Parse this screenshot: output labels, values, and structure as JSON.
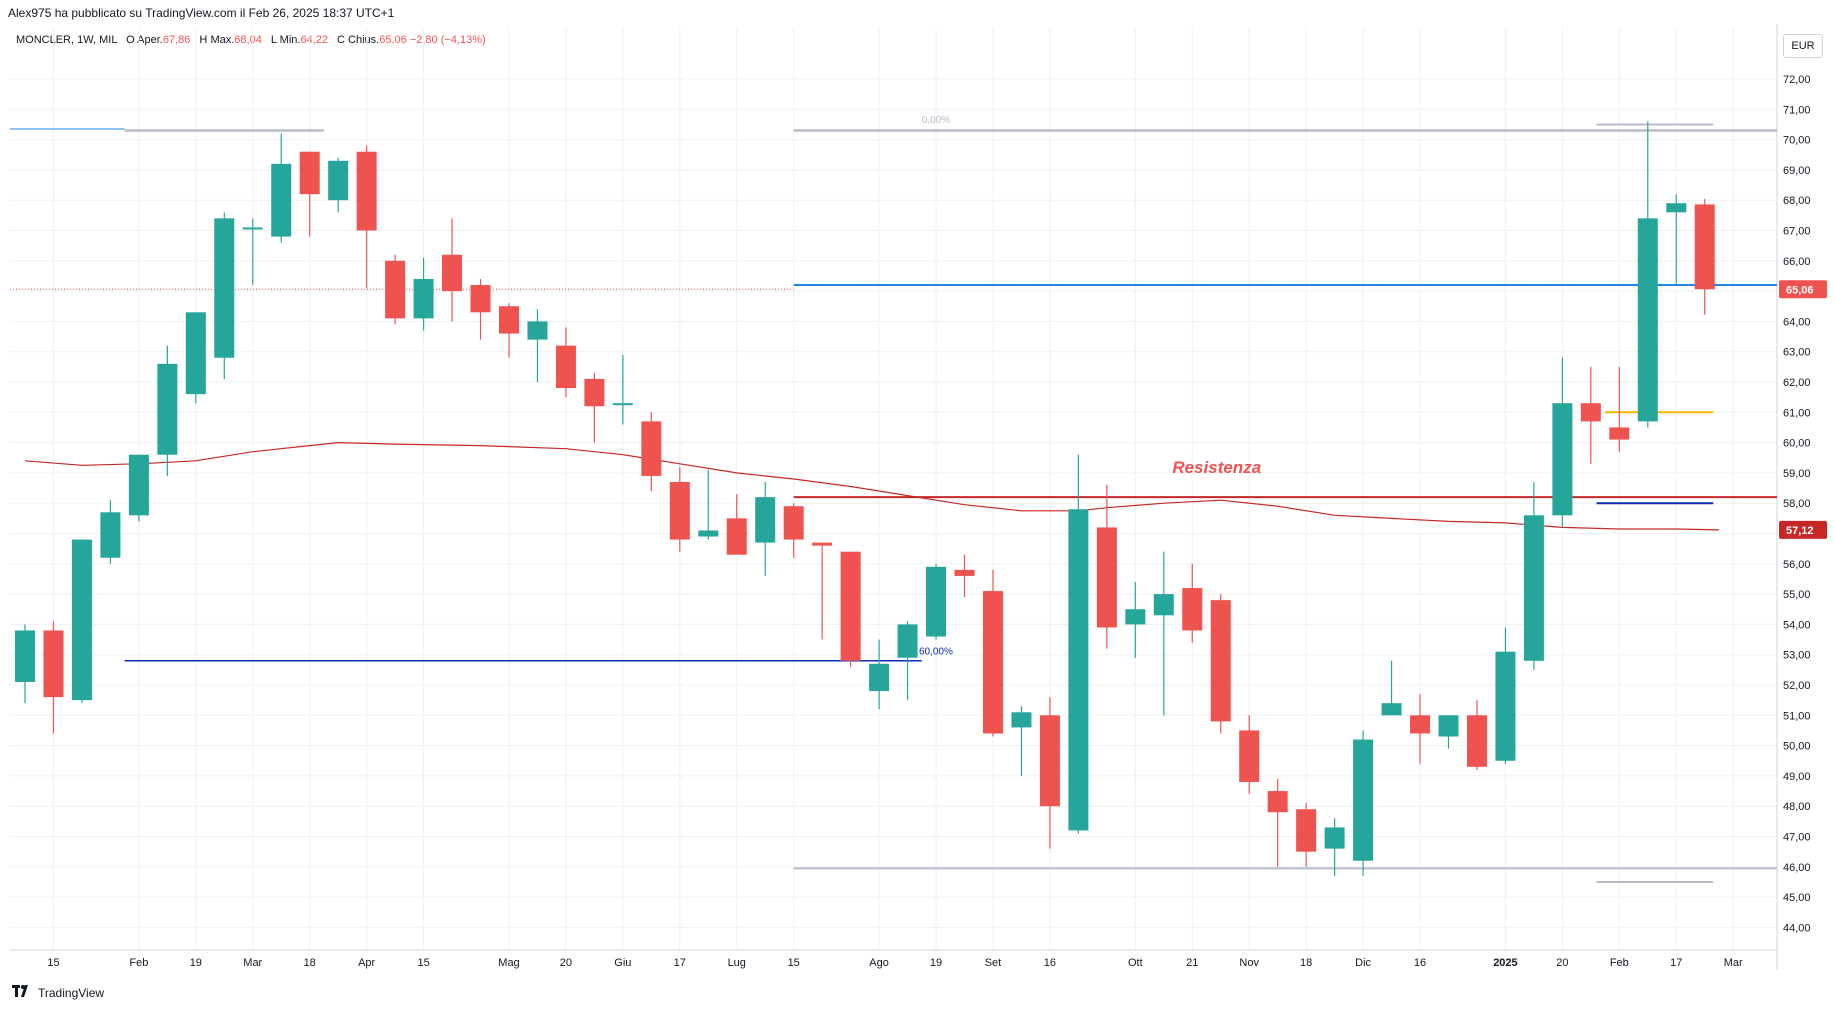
{
  "header": {
    "published_line": "Alex975 ha pubblicato su TradingView.com il Feb 26, 2025 18:37 UTC+1",
    "symbol": "MONCLER, 1W, MIL",
    "o_label": "O",
    "open_label": "Aper.",
    "open_value": "67,86",
    "h_label": "H",
    "high_label": "Max.",
    "high_value": "68,04",
    "l_label": "L",
    "low_label": "Min.",
    "low_value": "64,22",
    "c_label": "C",
    "close_label": "Chius.",
    "close_value": "65,06",
    "change_value": "−2,80 (−4,13%)"
  },
  "currency": "EUR",
  "footer": {
    "brand": "TradingView"
  },
  "colors": {
    "up": "#26a69a",
    "down": "#ef5350",
    "ma": "#c62828",
    "blue_line": "#1e88e5",
    "navy_line": "#0d2bb5",
    "red_line": "#c62828",
    "gray_line": "#b8bcc8",
    "orange_line": "#f5b800",
    "grid": "#eef0f3",
    "price_label_last": "#ef5350",
    "price_label_ma": "#c62828",
    "annotation": "#ef5350"
  },
  "chart_data": {
    "type": "candlestick",
    "title": "",
    "xlabel": "",
    "ylabel": "",
    "ylim": [
      43.5,
      72.5
    ],
    "y_ticks": [
      "44,00",
      "45,00",
      "46,00",
      "47,00",
      "48,00",
      "49,00",
      "50,00",
      "51,00",
      "52,00",
      "53,00",
      "54,00",
      "55,00",
      "56,00",
      "57,00",
      "58,00",
      "59,00",
      "60,00",
      "61,00",
      "62,00",
      "63,00",
      "64,00",
      "65,00",
      "66,00",
      "67,00",
      "68,00",
      "69,00",
      "70,00",
      "71,00",
      "72,00"
    ],
    "x_labels": [
      {
        "i": 1,
        "text": "15"
      },
      {
        "i": 4,
        "text": "Feb"
      },
      {
        "i": 6,
        "text": "19"
      },
      {
        "i": 8,
        "text": "Mar"
      },
      {
        "i": 10,
        "text": "18"
      },
      {
        "i": 12,
        "text": "Apr"
      },
      {
        "i": 14,
        "text": "15"
      },
      {
        "i": 17,
        "text": "Mag"
      },
      {
        "i": 19,
        "text": "20"
      },
      {
        "i": 21,
        "text": "Giu"
      },
      {
        "i": 23,
        "text": "17"
      },
      {
        "i": 25,
        "text": "Lug"
      },
      {
        "i": 27,
        "text": "15"
      },
      {
        "i": 30,
        "text": "Ago"
      },
      {
        "i": 32,
        "text": "19"
      },
      {
        "i": 34,
        "text": "Set"
      },
      {
        "i": 36,
        "text": "16"
      },
      {
        "i": 39,
        "text": "Ott"
      },
      {
        "i": 41,
        "text": "21"
      },
      {
        "i": 43,
        "text": "Nov"
      },
      {
        "i": 45,
        "text": "18"
      },
      {
        "i": 47,
        "text": "Dic"
      },
      {
        "i": 49,
        "text": "16"
      },
      {
        "i": 52,
        "text": "2025"
      },
      {
        "i": 54,
        "text": "20"
      },
      {
        "i": 56,
        "text": "Feb"
      },
      {
        "i": 58,
        "text": "17"
      },
      {
        "i": 60,
        "text": "Mar"
      }
    ],
    "candles": [
      [
        52.1,
        54.0,
        51.4,
        53.8
      ],
      [
        53.8,
        54.1,
        50.4,
        51.6
      ],
      [
        51.5,
        56.8,
        51.4,
        56.8
      ],
      [
        56.2,
        58.1,
        56.0,
        57.7
      ],
      [
        57.6,
        59.6,
        57.4,
        59.6
      ],
      [
        59.6,
        63.2,
        58.9,
        62.6
      ],
      [
        61.6,
        64.3,
        61.3,
        64.3
      ],
      [
        62.8,
        67.6,
        62.1,
        67.4
      ],
      [
        67.1,
        67.4,
        65.2,
        67.1
      ],
      [
        66.8,
        70.2,
        66.6,
        69.2
      ],
      [
        69.6,
        69.6,
        66.8,
        68.2
      ],
      [
        68.0,
        69.4,
        67.6,
        69.3
      ],
      [
        69.6,
        69.8,
        65.1,
        67.0
      ],
      [
        66.0,
        66.2,
        63.9,
        64.1
      ],
      [
        64.1,
        66.1,
        63.7,
        65.4
      ],
      [
        66.2,
        67.4,
        64.0,
        65.0
      ],
      [
        65.2,
        65.4,
        63.4,
        64.3
      ],
      [
        64.5,
        64.6,
        62.8,
        63.6
      ],
      [
        63.4,
        64.4,
        62.0,
        64.0
      ],
      [
        63.2,
        63.8,
        61.5,
        61.8
      ],
      [
        62.1,
        62.3,
        60.0,
        61.2
      ],
      [
        61.3,
        62.9,
        60.6,
        61.3
      ],
      [
        60.7,
        61.0,
        58.4,
        58.9
      ],
      [
        58.7,
        59.2,
        56.4,
        56.8
      ],
      [
        56.9,
        59.1,
        56.8,
        57.1
      ],
      [
        57.5,
        58.3,
        56.4,
        56.3
      ],
      [
        56.7,
        58.7,
        55.6,
        58.2
      ],
      [
        57.9,
        58.0,
        56.2,
        56.8
      ],
      [
        56.7,
        56.6,
        53.5,
        56.6
      ],
      [
        56.4,
        56.4,
        52.6,
        52.8
      ],
      [
        51.8,
        53.5,
        51.2,
        52.7
      ],
      [
        52.9,
        54.1,
        51.5,
        54.0
      ],
      [
        53.6,
        56.0,
        53.5,
        55.9
      ],
      [
        55.8,
        56.3,
        54.9,
        55.6
      ],
      [
        55.1,
        55.8,
        50.3,
        50.4
      ],
      [
        50.6,
        51.3,
        49.0,
        51.1
      ],
      [
        51.0,
        51.6,
        46.6,
        48.0
      ],
      [
        47.2,
        59.6,
        47.1,
        57.8
      ],
      [
        57.2,
        58.6,
        53.2,
        53.9
      ],
      [
        54.0,
        55.4,
        52.9,
        54.5
      ],
      [
        54.3,
        56.4,
        51.0,
        55.0
      ],
      [
        55.2,
        56.0,
        53.4,
        53.8
      ],
      [
        54.8,
        55.0,
        50.4,
        50.8
      ],
      [
        50.5,
        51.0,
        48.4,
        48.8
      ],
      [
        48.5,
        48.9,
        46.0,
        47.8
      ],
      [
        47.9,
        48.1,
        46.0,
        46.5
      ],
      [
        46.6,
        47.6,
        45.7,
        47.3
      ],
      [
        46.2,
        50.5,
        45.7,
        50.2
      ],
      [
        51.0,
        52.8,
        51.0,
        51.4
      ],
      [
        51.0,
        51.7,
        49.4,
        50.4
      ],
      [
        50.3,
        51.0,
        49.9,
        51.0
      ],
      [
        51.0,
        51.5,
        49.2,
        49.3
      ],
      [
        49.5,
        53.9,
        49.4,
        53.1
      ],
      [
        52.8,
        58.7,
        52.5,
        57.6
      ],
      [
        57.6,
        62.8,
        57.2,
        61.3
      ],
      [
        61.3,
        62.5,
        59.3,
        60.7
      ],
      [
        60.5,
        62.5,
        59.7,
        60.1
      ],
      [
        60.7,
        70.6,
        60.5,
        67.4
      ],
      [
        67.6,
        68.2,
        65.2,
        67.9
      ],
      [
        67.86,
        68.04,
        64.22,
        65.06
      ]
    ],
    "moving_average": [
      [
        0,
        59.4
      ],
      [
        2,
        59.25
      ],
      [
        4,
        59.3
      ],
      [
        6,
        59.4
      ],
      [
        8,
        59.7
      ],
      [
        10,
        59.9
      ],
      [
        11,
        60.0
      ],
      [
        13,
        59.95
      ],
      [
        16,
        59.9
      ],
      [
        19,
        59.8
      ],
      [
        21,
        59.6
      ],
      [
        23,
        59.3
      ],
      [
        25,
        59.0
      ],
      [
        27,
        58.8
      ],
      [
        29,
        58.55
      ],
      [
        31,
        58.25
      ],
      [
        33,
        57.95
      ],
      [
        35,
        57.75
      ],
      [
        37,
        57.75
      ],
      [
        38,
        57.85
      ],
      [
        40,
        58.0
      ],
      [
        42,
        58.1
      ],
      [
        44,
        57.9
      ],
      [
        46,
        57.6
      ],
      [
        48,
        57.5
      ],
      [
        50,
        57.4
      ],
      [
        52,
        57.35
      ],
      [
        54,
        57.2
      ],
      [
        56,
        57.15
      ],
      [
        58,
        57.15
      ],
      [
        59.5,
        57.12
      ]
    ],
    "levels": [
      {
        "name": "blue-horizontal-line",
        "y": 65.2,
        "from": 27,
        "to": 62,
        "color": "blue_line",
        "width": 2
      },
      {
        "name": "red-resistance-line",
        "y": 58.2,
        "from": 27,
        "to": 62,
        "color": "red_line",
        "width": 2
      },
      {
        "name": "fib-60-line",
        "y": 52.8,
        "from": 3.5,
        "to": 31.5,
        "color": "navy_line",
        "width": 1.5
      },
      {
        "name": "fib-0-line",
        "y": 70.3,
        "from": 27,
        "to": 62,
        "color": "gray_line",
        "width": 2.5
      },
      {
        "name": "top-gray-line-left",
        "y": 70.3,
        "from": 3.5,
        "to": 10.5,
        "color": "gray_line",
        "width": 2.5
      },
      {
        "name": "top-cyan-line",
        "y": 70.35,
        "from": -1,
        "to": 3.5,
        "color": "blue_line",
        "width": 1
      },
      {
        "name": "bottom-gray-line",
        "y": 45.95,
        "from": 27,
        "to": 62,
        "color": "gray_line",
        "width": 2
      },
      {
        "name": "right-gray-line-top",
        "y": 70.5,
        "from": 55.2,
        "to": 59.3,
        "color": "gray_line",
        "width": 2
      },
      {
        "name": "right-gray-line-bottom",
        "y": 45.5,
        "from": 55.2,
        "to": 59.3,
        "color": "gray_line",
        "width": 2
      },
      {
        "name": "orange-line",
        "y": 61.0,
        "from": 55.5,
        "to": 59.3,
        "color": "orange_line",
        "width": 2
      },
      {
        "name": "navy-short-line",
        "y": 58.0,
        "from": 55.2,
        "to": 59.3,
        "color": "navy_line",
        "width": 2
      }
    ],
    "dotted_last_price": {
      "y": 65.06,
      "from": -1,
      "to": 27
    },
    "annotations": [
      {
        "name": "resistenza-label",
        "text": "Resistenza",
        "x": 40.3,
        "y": 59.0,
        "color": "annotation",
        "italic": true,
        "bold": true,
        "size": 17
      },
      {
        "name": "fib-0-label",
        "text": "0,00%",
        "x": 31.5,
        "y": 70.55,
        "color": "gray_line",
        "size": 10
      },
      {
        "name": "fib-60-label",
        "text": "60,00%",
        "x": 31.4,
        "y": 53.0,
        "color": "navy_line",
        "size": 10
      }
    ],
    "price_labels": [
      {
        "name": "last-price-label",
        "text": "65,06",
        "y": 65.06,
        "color": "price_label_last"
      },
      {
        "name": "ma-price-label",
        "text": "57,12",
        "y": 57.12,
        "color": "price_label_ma"
      }
    ]
  }
}
